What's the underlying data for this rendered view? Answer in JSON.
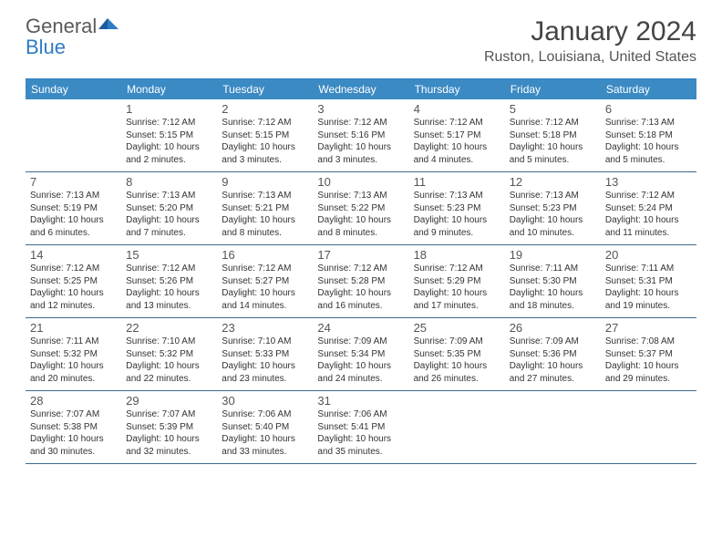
{
  "logo": {
    "text_gray": "General",
    "text_blue": "Blue",
    "gray_color": "#5a5a5a",
    "blue_color": "#2e7cc4"
  },
  "title": "January 2024",
  "location": "Ruston, Louisiana, United States",
  "colors": {
    "header_bg": "#3b8ac4",
    "header_text": "#ffffff",
    "border": "#3b6a8f",
    "text": "#333333",
    "daynum": "#555555",
    "background": "#ffffff"
  },
  "day_names": [
    "Sunday",
    "Monday",
    "Tuesday",
    "Wednesday",
    "Thursday",
    "Friday",
    "Saturday"
  ],
  "start_offset": 1,
  "days": [
    {
      "n": 1,
      "sunrise": "7:12 AM",
      "sunset": "5:15 PM",
      "daylight": "10 hours and 2 minutes."
    },
    {
      "n": 2,
      "sunrise": "7:12 AM",
      "sunset": "5:15 PM",
      "daylight": "10 hours and 3 minutes."
    },
    {
      "n": 3,
      "sunrise": "7:12 AM",
      "sunset": "5:16 PM",
      "daylight": "10 hours and 3 minutes."
    },
    {
      "n": 4,
      "sunrise": "7:12 AM",
      "sunset": "5:17 PM",
      "daylight": "10 hours and 4 minutes."
    },
    {
      "n": 5,
      "sunrise": "7:12 AM",
      "sunset": "5:18 PM",
      "daylight": "10 hours and 5 minutes."
    },
    {
      "n": 6,
      "sunrise": "7:13 AM",
      "sunset": "5:18 PM",
      "daylight": "10 hours and 5 minutes."
    },
    {
      "n": 7,
      "sunrise": "7:13 AM",
      "sunset": "5:19 PM",
      "daylight": "10 hours and 6 minutes."
    },
    {
      "n": 8,
      "sunrise": "7:13 AM",
      "sunset": "5:20 PM",
      "daylight": "10 hours and 7 minutes."
    },
    {
      "n": 9,
      "sunrise": "7:13 AM",
      "sunset": "5:21 PM",
      "daylight": "10 hours and 8 minutes."
    },
    {
      "n": 10,
      "sunrise": "7:13 AM",
      "sunset": "5:22 PM",
      "daylight": "10 hours and 8 minutes."
    },
    {
      "n": 11,
      "sunrise": "7:13 AM",
      "sunset": "5:23 PM",
      "daylight": "10 hours and 9 minutes."
    },
    {
      "n": 12,
      "sunrise": "7:13 AM",
      "sunset": "5:23 PM",
      "daylight": "10 hours and 10 minutes."
    },
    {
      "n": 13,
      "sunrise": "7:12 AM",
      "sunset": "5:24 PM",
      "daylight": "10 hours and 11 minutes."
    },
    {
      "n": 14,
      "sunrise": "7:12 AM",
      "sunset": "5:25 PM",
      "daylight": "10 hours and 12 minutes."
    },
    {
      "n": 15,
      "sunrise": "7:12 AM",
      "sunset": "5:26 PM",
      "daylight": "10 hours and 13 minutes."
    },
    {
      "n": 16,
      "sunrise": "7:12 AM",
      "sunset": "5:27 PM",
      "daylight": "10 hours and 14 minutes."
    },
    {
      "n": 17,
      "sunrise": "7:12 AM",
      "sunset": "5:28 PM",
      "daylight": "10 hours and 16 minutes."
    },
    {
      "n": 18,
      "sunrise": "7:12 AM",
      "sunset": "5:29 PM",
      "daylight": "10 hours and 17 minutes."
    },
    {
      "n": 19,
      "sunrise": "7:11 AM",
      "sunset": "5:30 PM",
      "daylight": "10 hours and 18 minutes."
    },
    {
      "n": 20,
      "sunrise": "7:11 AM",
      "sunset": "5:31 PM",
      "daylight": "10 hours and 19 minutes."
    },
    {
      "n": 21,
      "sunrise": "7:11 AM",
      "sunset": "5:32 PM",
      "daylight": "10 hours and 20 minutes."
    },
    {
      "n": 22,
      "sunrise": "7:10 AM",
      "sunset": "5:32 PM",
      "daylight": "10 hours and 22 minutes."
    },
    {
      "n": 23,
      "sunrise": "7:10 AM",
      "sunset": "5:33 PM",
      "daylight": "10 hours and 23 minutes."
    },
    {
      "n": 24,
      "sunrise": "7:09 AM",
      "sunset": "5:34 PM",
      "daylight": "10 hours and 24 minutes."
    },
    {
      "n": 25,
      "sunrise": "7:09 AM",
      "sunset": "5:35 PM",
      "daylight": "10 hours and 26 minutes."
    },
    {
      "n": 26,
      "sunrise": "7:09 AM",
      "sunset": "5:36 PM",
      "daylight": "10 hours and 27 minutes."
    },
    {
      "n": 27,
      "sunrise": "7:08 AM",
      "sunset": "5:37 PM",
      "daylight": "10 hours and 29 minutes."
    },
    {
      "n": 28,
      "sunrise": "7:07 AM",
      "sunset": "5:38 PM",
      "daylight": "10 hours and 30 minutes."
    },
    {
      "n": 29,
      "sunrise": "7:07 AM",
      "sunset": "5:39 PM",
      "daylight": "10 hours and 32 minutes."
    },
    {
      "n": 30,
      "sunrise": "7:06 AM",
      "sunset": "5:40 PM",
      "daylight": "10 hours and 33 minutes."
    },
    {
      "n": 31,
      "sunrise": "7:06 AM",
      "sunset": "5:41 PM",
      "daylight": "10 hours and 35 minutes."
    }
  ],
  "labels": {
    "sunrise": "Sunrise:",
    "sunset": "Sunset:",
    "daylight": "Daylight:"
  }
}
